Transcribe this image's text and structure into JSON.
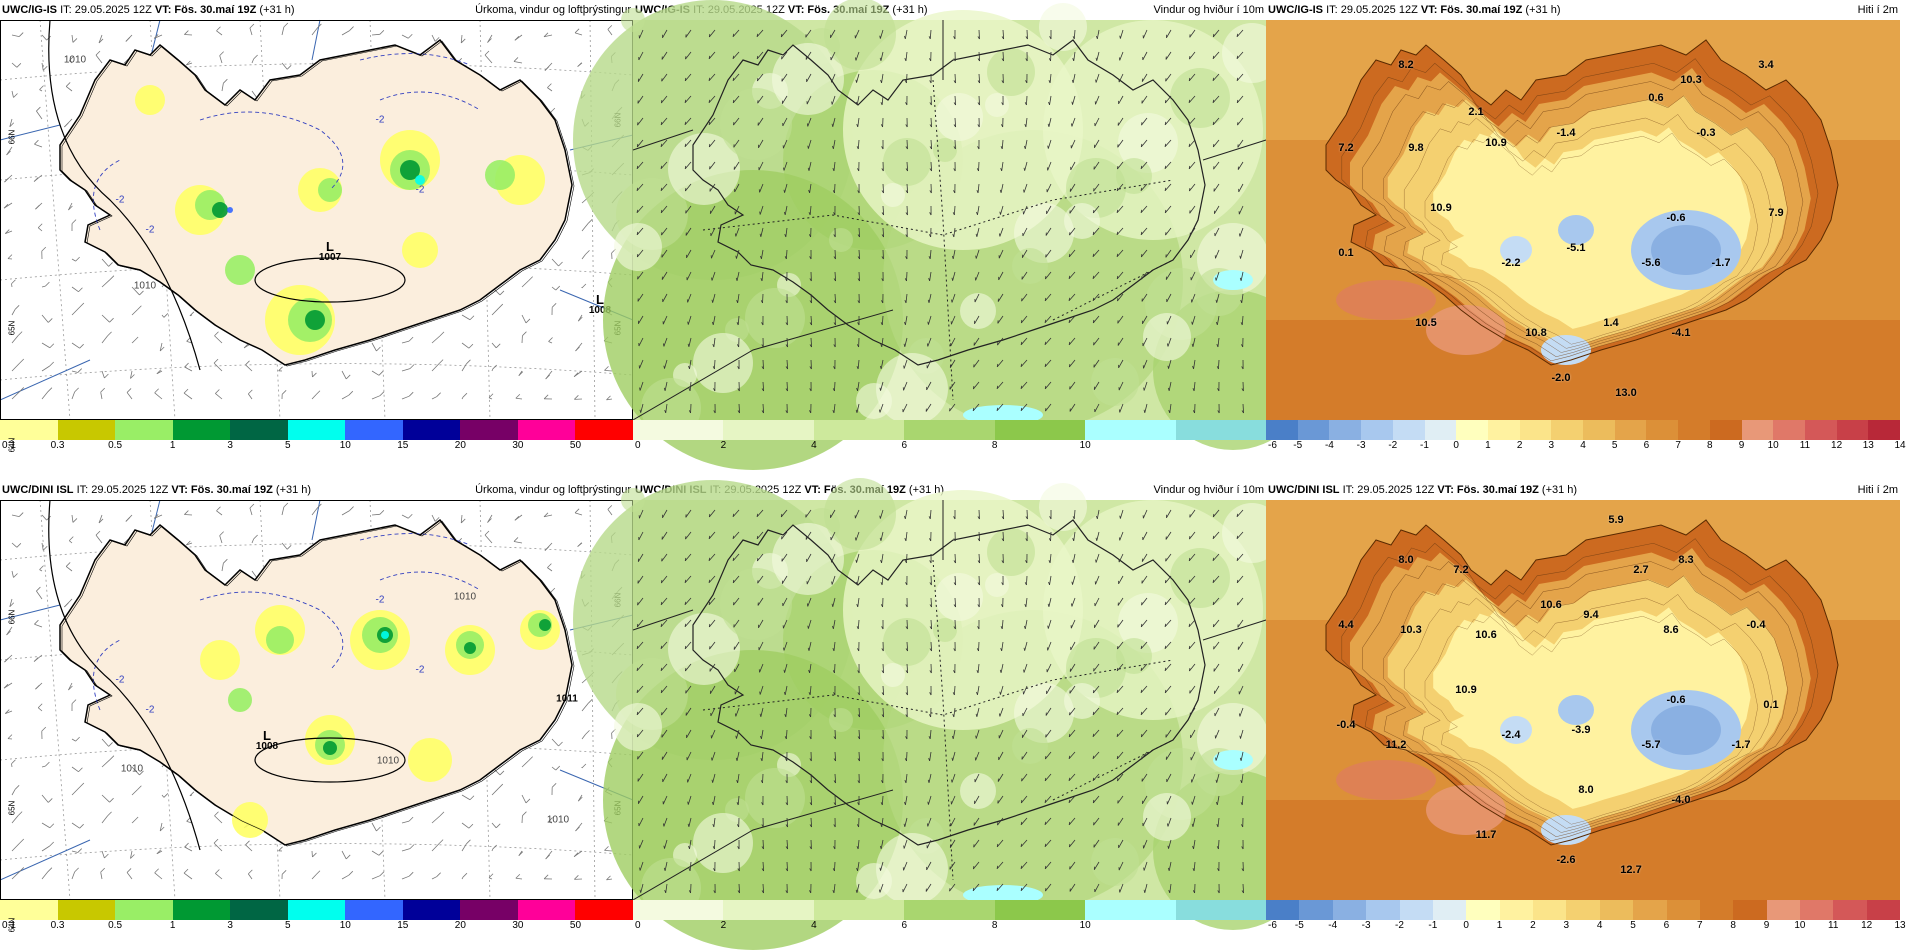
{
  "panels": [
    {
      "id": "p1",
      "model": "UWC/IG-IS",
      "it": "IT: 29.05.2025 12Z",
      "vt_label": "VT:",
      "vt": "Fös. 30.maí 19Z",
      "lead": "(+31 h)",
      "title": "Úrkoma, vindur og loftþrýstingur",
      "type": "precip"
    },
    {
      "id": "p2",
      "model": "UWC/IG-IS",
      "it": "IT: 29.05.2025 12Z",
      "vt_label": "VT:",
      "vt": "Fös. 30.maí 19Z",
      "lead": "(+31 h)",
      "title": "Vindur og hviður í 10m",
      "type": "wind"
    },
    {
      "id": "p3",
      "model": "UWC/IG-IS",
      "it": "IT: 29.05.2025 12Z",
      "vt_label": "VT:",
      "vt": "Fös. 30.maí 19Z",
      "lead": "(+31 h)",
      "title": "Hiti í 2m",
      "type": "temp"
    },
    {
      "id": "p4",
      "model": "UWC/DINI ISL",
      "it": "IT: 29.05.2025 12Z",
      "vt_label": "VT:",
      "vt": "Fös. 30.maí 19Z",
      "lead": "(+31 h)",
      "title": "Úrkoma, vindur og loftþrýstingur",
      "type": "precip"
    },
    {
      "id": "p5",
      "model": "UWC/DINI ISL",
      "it": "IT: 29.05.2025 12Z",
      "vt_label": "VT:",
      "vt": "Fös. 30.maí 19Z",
      "lead": "(+31 h)",
      "title": "Vindur og hviður í 10m",
      "type": "wind"
    },
    {
      "id": "p6",
      "model": "UWC/DINI ISL",
      "it": "IT: 29.05.2025 12Z",
      "vt_label": "VT:",
      "vt": "Fös. 30.maí 19Z",
      "lead": "(+31 h)",
      "title": "Hiti í 2m",
      "type": "temp"
    }
  ],
  "legends": {
    "precip": {
      "colors": [
        "#ffff99",
        "#c8c800",
        "#99ee66",
        "#009933",
        "#006644",
        "#00ffee",
        "#3366ff",
        "#000099",
        "#770066",
        "#ff0099",
        "#ff0000"
      ],
      "ticks": [
        "0.1",
        "0.3",
        "0.5",
        "1",
        "3",
        "5",
        "10",
        "15",
        "20",
        "30",
        "50"
      ]
    },
    "wind": {
      "colors": [
        "#f4fae0",
        "#e6f5c4",
        "#cde99c",
        "#a9d66f",
        "#8cc84b",
        "#aaffff",
        "#88dddd"
      ],
      "ticks": [
        "0",
        "2",
        "4",
        "6",
        "8",
        "10"
      ]
    },
    "temp_top": {
      "colors": [
        "#4a7fc8",
        "#6a98d6",
        "#8ab0e2",
        "#a8c8ee",
        "#c4dcf4",
        "#e0eef4",
        "#ffffbe",
        "#fff2a0",
        "#fbe48a",
        "#f4d070",
        "#ecbc5c",
        "#e4a44a",
        "#dc9038",
        "#d47c2a",
        "#cc6a20",
        "#e89878",
        "#e07868",
        "#d45858",
        "#c84048",
        "#b82838"
      ],
      "ticks": [
        "-6",
        "-5",
        "-4",
        "-3",
        "-2",
        "-1",
        "0",
        "1",
        "2",
        "3",
        "4",
        "5",
        "6",
        "7",
        "8",
        "9",
        "10",
        "11",
        "12",
        "13",
        "14"
      ]
    },
    "temp_bottom": {
      "colors": [
        "#4a7fc8",
        "#6a98d6",
        "#8ab0e2",
        "#a8c8ee",
        "#c4dcf4",
        "#e0eef4",
        "#ffffbe",
        "#fff2a0",
        "#fbe48a",
        "#f4d070",
        "#ecbc5c",
        "#e4a44a",
        "#dc9038",
        "#d47c2a",
        "#cc6a20",
        "#e89878",
        "#e07868",
        "#d45858",
        "#c84048"
      ],
      "ticks": [
        "-6",
        "-5",
        "-4",
        "-3",
        "-2",
        "-1",
        "0",
        "1",
        "2",
        "3",
        "4",
        "5",
        "6",
        "7",
        "8",
        "9",
        "10",
        "11",
        "12",
        "13"
      ]
    }
  },
  "precip_annotations": {
    "top": {
      "lows": [
        {
          "L": "L",
          "p": "1007"
        },
        {
          "L": "L",
          "p": "1008"
        }
      ],
      "isobars": [
        "1010",
        "1010"
      ],
      "lat": [
        "66N",
        "66N",
        "65N",
        "65N",
        "64N"
      ],
      "neg": [
        "-2",
        "-2",
        "-2",
        "-2"
      ]
    },
    "bottom": {
      "lows": [
        {
          "L": "L",
          "p": "1008"
        },
        {
          "L": "",
          "p": "1011"
        }
      ],
      "isobars": [
        "1010",
        "1010",
        "1010",
        "1010"
      ],
      "lat": [
        "66N",
        "66N",
        "65N",
        "65N",
        "64N"
      ],
      "neg": [
        "-2",
        "-2",
        "-2",
        "-2"
      ]
    }
  },
  "temp_values": {
    "top": [
      "8.2",
      "10.3",
      "3.4",
      "2.1",
      "0.6",
      "7.2",
      "9.8",
      "10.9",
      "-1.4",
      "-0.3",
      "10.9",
      "-0.6",
      "7.9",
      "0.1",
      "-2.2",
      "-5.1",
      "-5.6",
      "-1.7",
      "10.5",
      "10.8",
      "1.4",
      "-4.1",
      "-2.0",
      "13.0"
    ],
    "bottom": [
      "5.9",
      "8.0",
      "8.3",
      "7.2",
      "2.7",
      "10.6",
      "9.4",
      "4.4",
      "10.3",
      "10.6",
      "8.6",
      "-0.4",
      "10.9",
      "-0.6",
      "0.1",
      "-0.4",
      "-2.4",
      "-3.9",
      "-5.7",
      "-1.7",
      "11.2",
      "8.0",
      "-4.0",
      "11.7",
      "-2.6",
      "12.7"
    ]
  }
}
